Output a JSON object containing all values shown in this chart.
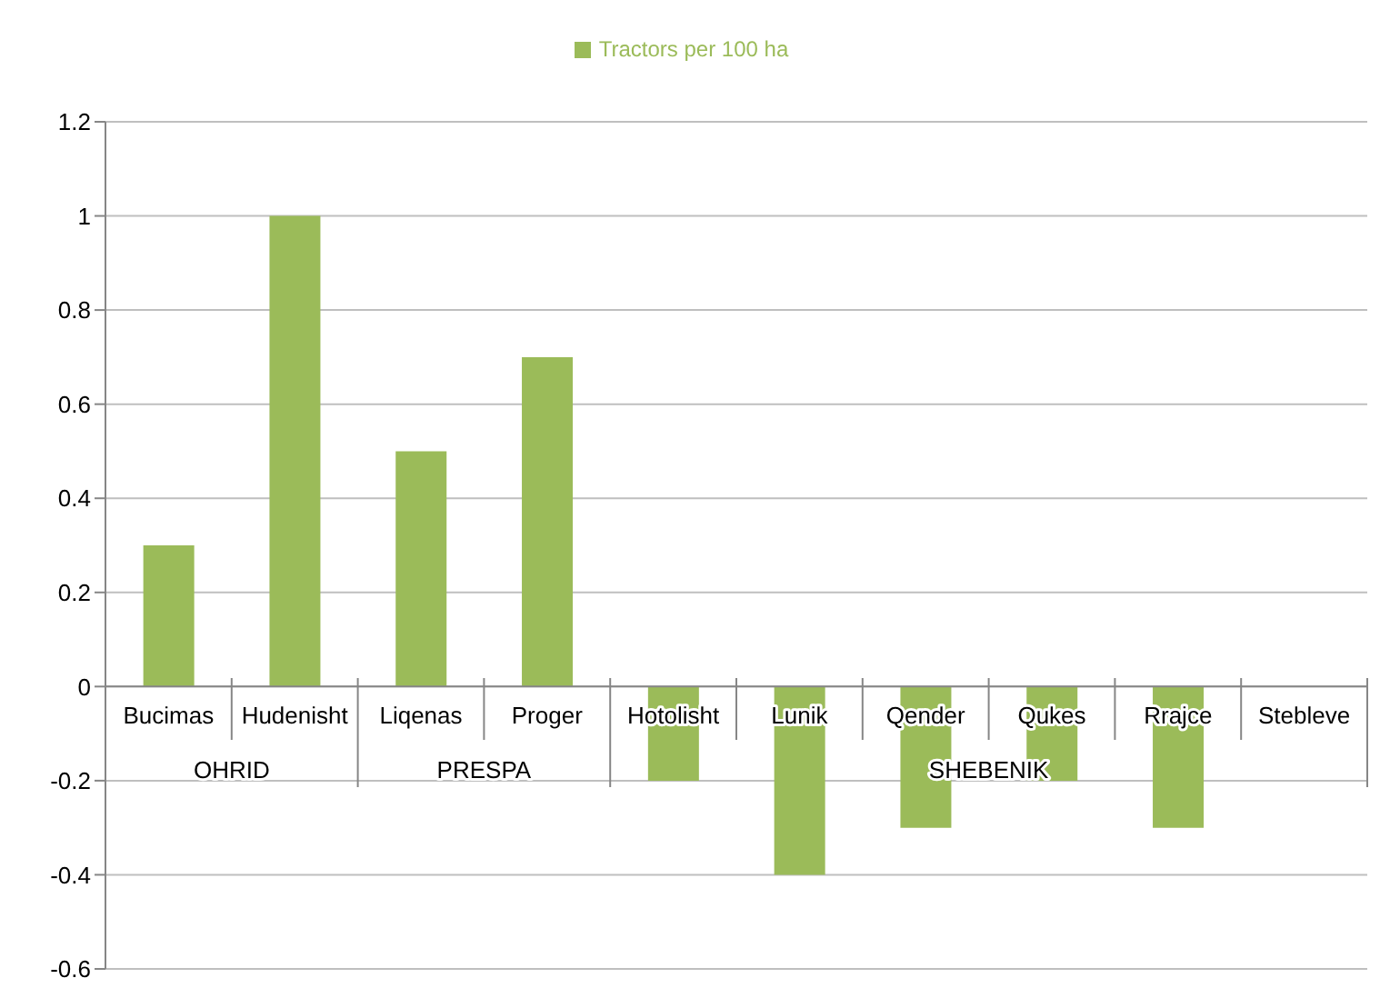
{
  "chart_data": {
    "type": "bar",
    "categories": [
      "Bucimas",
      "Hudenisht",
      "Liqenas",
      "Proger",
      "Hotolisht",
      "Lunik",
      "Qender",
      "Qukes",
      "Rrajce",
      "Stebleve"
    ],
    "series": [
      {
        "name": "Tractors per 100 ha",
        "color": "#9bbb59",
        "values": [
          0.3,
          1.0,
          0.5,
          0.7,
          -0.2,
          -0.4,
          -0.3,
          -0.2,
          -0.3,
          0
        ]
      }
    ],
    "annotations": [
      "OHRID",
      "PRESPA",
      "SHEBENIK"
    ],
    "ylim": [
      -0.6,
      1.2
    ],
    "yticks": [
      -0.6,
      -0.4,
      -0.2,
      0,
      0.2,
      0.4,
      0.6,
      0.8,
      1,
      1.2
    ],
    "grid": "y",
    "legend": "top"
  }
}
